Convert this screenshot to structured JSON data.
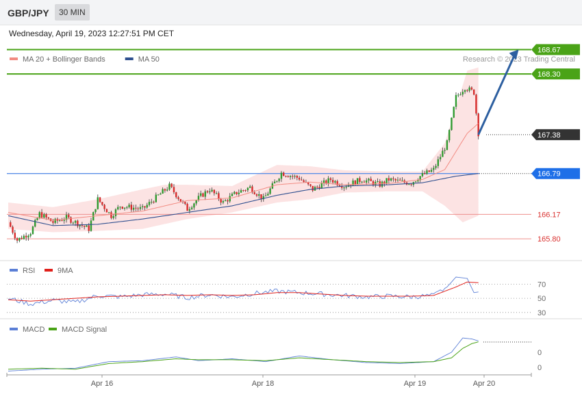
{
  "header": {
    "symbol": "GBP/JPY",
    "timeframe": "30 MIN",
    "datetime": "Wednesday, April 19, 2023 12:27:51 PM CET"
  },
  "legend": {
    "main": [
      {
        "label": "MA 20 + Bollinger Bands",
        "color": "#f28b82"
      },
      {
        "label": "MA 50",
        "color": "#2f4f8f"
      }
    ],
    "rsi": [
      {
        "label": "RSI",
        "color": "#5b7fd6"
      },
      {
        "label": "9MA",
        "color": "#e0201b"
      }
    ],
    "macd": [
      {
        "label": "MACD",
        "color": "#5b7fd6"
      },
      {
        "label": "MACD Signal",
        "color": "#4aa317"
      }
    ],
    "credit": "Research © 2023 Trading Central"
  },
  "chart_data": [
    {
      "type": "candlestick",
      "panel": "price",
      "ylim": [
        165.5,
        168.8
      ],
      "levels": [
        {
          "value": 168.67,
          "label": "168.67",
          "color": "#4aa317",
          "kind": "resistance-tag"
        },
        {
          "value": 168.3,
          "label": "168.30",
          "color": "#4aa317",
          "kind": "resistance-tag"
        },
        {
          "value": 167.38,
          "label": "167.38",
          "color": "#333333",
          "kind": "last-price"
        },
        {
          "value": 166.79,
          "label": "166.79",
          "color": "#1e6fe8",
          "kind": "pivot"
        },
        {
          "value": 166.17,
          "label": "166.17",
          "color": "#d9302e",
          "kind": "support"
        },
        {
          "value": 165.8,
          "label": "165.80",
          "color": "#d9302e",
          "kind": "support"
        }
      ],
      "x_tick_labels": [
        "Apr 16",
        "Apr 18",
        "Apr 19",
        "Apr 20"
      ],
      "path": [
        [
          0,
          166.05
        ],
        [
          4,
          165.78
        ],
        [
          10,
          165.9
        ],
        [
          14,
          166.18
        ],
        [
          20,
          166.05
        ],
        [
          26,
          166.12
        ],
        [
          36,
          165.95
        ],
        [
          40,
          166.4
        ],
        [
          46,
          166.15
        ],
        [
          50,
          166.3
        ],
        [
          60,
          166.25
        ],
        [
          72,
          166.6
        ],
        [
          80,
          166.25
        ],
        [
          86,
          166.45
        ],
        [
          90,
          166.55
        ],
        [
          96,
          166.35
        ],
        [
          102,
          166.5
        ],
        [
          108,
          166.58
        ],
        [
          114,
          166.4
        ],
        [
          122,
          166.8
        ],
        [
          130,
          166.72
        ],
        [
          136,
          166.55
        ],
        [
          144,
          166.7
        ],
        [
          150,
          166.6
        ],
        [
          158,
          166.7
        ],
        [
          166,
          166.62
        ],
        [
          170,
          166.7
        ],
        [
          176,
          166.66
        ],
        [
          180,
          166.65
        ],
        [
          184,
          166.75
        ],
        [
          190,
          166.85
        ],
        [
          196,
          167.25
        ],
        [
          200,
          167.95
        ],
        [
          204,
          168.1
        ],
        [
          208,
          168.02
        ],
        [
          210,
          167.4
        ]
      ],
      "ma20": [
        [
          0,
          166.2
        ],
        [
          20,
          166.08
        ],
        [
          40,
          166.15
        ],
        [
          60,
          166.22
        ],
        [
          80,
          166.38
        ],
        [
          100,
          166.42
        ],
        [
          120,
          166.62
        ],
        [
          135,
          166.66
        ],
        [
          150,
          166.62
        ],
        [
          170,
          166.64
        ],
        [
          185,
          166.7
        ],
        [
          195,
          166.85
        ],
        [
          205,
          167.4
        ],
        [
          210,
          167.55
        ]
      ],
      "ma50": [
        [
          0,
          166.15
        ],
        [
          20,
          166.0
        ],
        [
          40,
          166.02
        ],
        [
          60,
          166.1
        ],
        [
          80,
          166.2
        ],
        [
          100,
          166.3
        ],
        [
          120,
          166.46
        ],
        [
          135,
          166.55
        ],
        [
          150,
          166.6
        ],
        [
          170,
          166.62
        ],
        [
          185,
          166.65
        ],
        [
          200,
          166.75
        ],
        [
          210,
          166.79
        ]
      ],
      "bollinger_upper": [
        [
          0,
          166.35
        ],
        [
          20,
          166.28
        ],
        [
          40,
          166.4
        ],
        [
          60,
          166.55
        ],
        [
          70,
          166.62
        ],
        [
          80,
          166.62
        ],
        [
          100,
          166.6
        ],
        [
          120,
          166.92
        ],
        [
          135,
          166.9
        ],
        [
          150,
          166.84
        ],
        [
          170,
          166.82
        ],
        [
          185,
          166.82
        ],
        [
          195,
          167.25
        ],
        [
          205,
          168.35
        ],
        [
          210,
          168.4
        ]
      ],
      "bollinger_lower": [
        [
          0,
          165.95
        ],
        [
          20,
          165.9
        ],
        [
          40,
          165.92
        ],
        [
          60,
          165.95
        ],
        [
          80,
          166.1
        ],
        [
          100,
          166.2
        ],
        [
          120,
          166.35
        ],
        [
          135,
          166.4
        ],
        [
          150,
          166.5
        ],
        [
          170,
          166.52
        ],
        [
          185,
          166.52
        ],
        [
          195,
          166.3
        ],
        [
          203,
          166.05
        ],
        [
          210,
          166.15
        ]
      ],
      "projection": {
        "from": [
          210,
          167.38
        ],
        "to": [
          228,
          168.67
        ]
      }
    },
    {
      "type": "line",
      "panel": "rsi",
      "ylim": [
        25,
        80
      ],
      "y_tick_labels": [
        "70",
        "50",
        "30"
      ],
      "y_ticks": [
        70,
        50,
        30
      ],
      "rsi": [
        [
          0,
          50
        ],
        [
          10,
          42
        ],
        [
          20,
          47
        ],
        [
          30,
          44
        ],
        [
          40,
          54
        ],
        [
          50,
          52
        ],
        [
          60,
          55
        ],
        [
          70,
          56
        ],
        [
          80,
          51
        ],
        [
          90,
          55
        ],
        [
          100,
          52
        ],
        [
          110,
          57
        ],
        [
          120,
          60
        ],
        [
          130,
          58
        ],
        [
          140,
          56
        ],
        [
          150,
          54
        ],
        [
          160,
          52
        ],
        [
          170,
          53
        ],
        [
          180,
          52
        ],
        [
          190,
          54
        ],
        [
          196,
          66
        ],
        [
          200,
          80
        ],
        [
          205,
          78
        ],
        [
          208,
          58
        ],
        [
          210,
          59
        ]
      ],
      "rsi_ma": [
        [
          0,
          48
        ],
        [
          10,
          46
        ],
        [
          20,
          48
        ],
        [
          30,
          50
        ],
        [
          40,
          52
        ],
        [
          50,
          53
        ],
        [
          60,
          54
        ],
        [
          70,
          55
        ],
        [
          80,
          54
        ],
        [
          90,
          55
        ],
        [
          100,
          54
        ],
        [
          110,
          55
        ],
        [
          120,
          58
        ],
        [
          130,
          58
        ],
        [
          140,
          56
        ],
        [
          150,
          54
        ],
        [
          160,
          53
        ],
        [
          170,
          53
        ],
        [
          180,
          53
        ],
        [
          190,
          54
        ],
        [
          200,
          66
        ],
        [
          205,
          73
        ],
        [
          210,
          72
        ]
      ]
    },
    {
      "type": "line",
      "panel": "macd",
      "ylim": [
        -0.12,
        0.3
      ],
      "y_tick_labels": [
        "0",
        "0"
      ],
      "y_ticks": [
        0.12,
        -0.04
      ],
      "macd": [
        [
          0,
          -0.08
        ],
        [
          15,
          -0.06
        ],
        [
          30,
          -0.05
        ],
        [
          45,
          0.02
        ],
        [
          60,
          0.03
        ],
        [
          75,
          0.07
        ],
        [
          85,
          0.03
        ],
        [
          100,
          0.05
        ],
        [
          115,
          0.02
        ],
        [
          130,
          0.08
        ],
        [
          145,
          0.04
        ],
        [
          160,
          0.01
        ],
        [
          175,
          0.0
        ],
        [
          190,
          0.02
        ],
        [
          198,
          0.12
        ],
        [
          203,
          0.27
        ],
        [
          207,
          0.26
        ],
        [
          210,
          0.24
        ]
      ],
      "signal": [
        [
          0,
          -0.06
        ],
        [
          15,
          -0.05
        ],
        [
          30,
          -0.06
        ],
        [
          45,
          0.0
        ],
        [
          60,
          0.02
        ],
        [
          75,
          0.05
        ],
        [
          85,
          0.04
        ],
        [
          100,
          0.04
        ],
        [
          115,
          0.03
        ],
        [
          130,
          0.06
        ],
        [
          145,
          0.04
        ],
        [
          160,
          0.02
        ],
        [
          175,
          0.01
        ],
        [
          190,
          0.02
        ],
        [
          198,
          0.06
        ],
        [
          203,
          0.16
        ],
        [
          207,
          0.21
        ],
        [
          210,
          0.23
        ]
      ]
    }
  ]
}
